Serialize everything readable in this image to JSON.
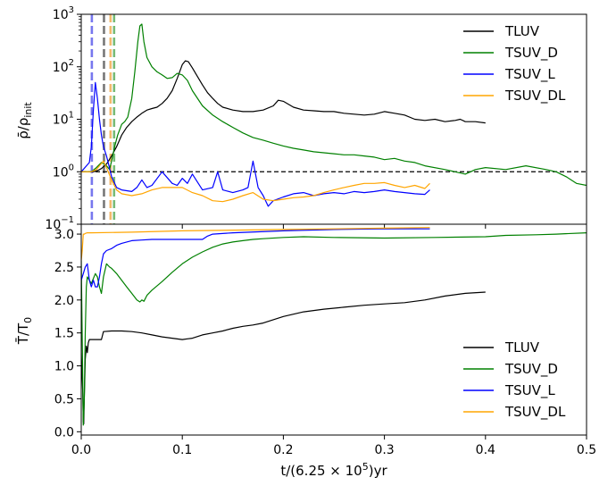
{
  "chart_data": [
    {
      "type": "line",
      "panel": "top",
      "yscale": "log",
      "ylabel": "ρ̄/ρ_init",
      "ylabel_main": "ρ̄/ρ",
      "ylabel_sub": "init",
      "xlim": [
        0,
        0.5
      ],
      "ylim": [
        0.1,
        1000
      ],
      "yticks": [
        {
          "value": 0.1,
          "mant": "10",
          "exp": "−1"
        },
        {
          "value": 1,
          "mant": "10",
          "exp": "0"
        },
        {
          "value": 10,
          "mant": "10",
          "exp": "1"
        },
        {
          "value": 100,
          "mant": "10",
          "exp": "2"
        },
        {
          "value": 1000,
          "mant": "10",
          "exp": "3"
        }
      ],
      "reference_line": {
        "y": 1,
        "style": "dashed",
        "color": "#000000"
      },
      "vertical_markers": [
        {
          "x": 0.0105,
          "color": "#7777ee"
        },
        {
          "x": 0.0225,
          "color": "#777777"
        },
        {
          "x": 0.029,
          "color": "#f3b86b"
        },
        {
          "x": 0.0325,
          "color": "#77bb77"
        }
      ],
      "legend": {
        "position": "upper-right"
      },
      "series": [
        {
          "name": "TLUV",
          "color": "#000000",
          "x": [
            0,
            0.012,
            0.016,
            0.02,
            0.025,
            0.03,
            0.035,
            0.04,
            0.045,
            0.05,
            0.055,
            0.06,
            0.065,
            0.07,
            0.075,
            0.08,
            0.085,
            0.09,
            0.095,
            0.1,
            0.103,
            0.106,
            0.11,
            0.115,
            0.12,
            0.125,
            0.13,
            0.135,
            0.14,
            0.15,
            0.16,
            0.17,
            0.18,
            0.19,
            0.195,
            0.2,
            0.21,
            0.22,
            0.23,
            0.24,
            0.25,
            0.26,
            0.27,
            0.28,
            0.29,
            0.3,
            0.31,
            0.32,
            0.33,
            0.34,
            0.35,
            0.36,
            0.37,
            0.375,
            0.38,
            0.39,
            0.4
          ],
          "y": [
            1,
            1,
            1.05,
            1.15,
            1.4,
            2,
            3,
            5,
            7,
            9,
            11,
            13,
            15,
            16,
            17,
            20,
            25,
            35,
            60,
            110,
            130,
            125,
            95,
            65,
            45,
            32,
            25,
            20,
            17,
            15,
            14,
            14,
            15,
            18,
            23,
            22,
            17,
            15,
            14.5,
            14,
            14,
            13,
            12.5,
            12,
            12.5,
            14,
            13,
            12,
            10,
            9.5,
            10,
            9,
            9.5,
            10,
            9,
            9,
            8.5
          ]
        },
        {
          "name": "TSUV_D",
          "color": "#008000",
          "x": [
            0,
            0.01,
            0.015,
            0.02,
            0.025,
            0.028,
            0.03,
            0.033,
            0.036,
            0.04,
            0.043,
            0.046,
            0.05,
            0.053,
            0.056,
            0.058,
            0.06,
            0.062,
            0.065,
            0.07,
            0.075,
            0.08,
            0.085,
            0.09,
            0.095,
            0.1,
            0.105,
            0.11,
            0.12,
            0.13,
            0.14,
            0.15,
            0.16,
            0.17,
            0.18,
            0.19,
            0.2,
            0.21,
            0.22,
            0.23,
            0.24,
            0.25,
            0.26,
            0.27,
            0.28,
            0.29,
            0.3,
            0.31,
            0.32,
            0.33,
            0.34,
            0.36,
            0.38,
            0.39,
            0.4,
            0.42,
            0.44,
            0.46,
            0.47,
            0.48,
            0.49,
            0.5
          ],
          "y": [
            1,
            1,
            1.2,
            1.5,
            1.3,
            1.1,
            1.6,
            3,
            5,
            8,
            9,
            11,
            25,
            80,
            300,
            600,
            650,
            300,
            150,
            100,
            80,
            70,
            60,
            62,
            75,
            70,
            55,
            35,
            18,
            12,
            9,
            7,
            5.5,
            4.5,
            4,
            3.5,
            3.1,
            2.8,
            2.6,
            2.4,
            2.3,
            2.2,
            2.1,
            2.1,
            2,
            1.9,
            1.7,
            1.8,
            1.6,
            1.5,
            1.3,
            1.1,
            0.9,
            1.1,
            1.2,
            1.1,
            1.3,
            1.1,
            1,
            0.8,
            0.6,
            0.55
          ]
        },
        {
          "name": "TSUV_L",
          "color": "#0000ff",
          "x": [
            0,
            0.008,
            0.01,
            0.012,
            0.014,
            0.016,
            0.018,
            0.02,
            0.022,
            0.025,
            0.027,
            0.03,
            0.035,
            0.04,
            0.05,
            0.055,
            0.06,
            0.065,
            0.07,
            0.08,
            0.09,
            0.095,
            0.1,
            0.105,
            0.11,
            0.12,
            0.13,
            0.135,
            0.14,
            0.15,
            0.16,
            0.165,
            0.17,
            0.175,
            0.18,
            0.185,
            0.19,
            0.2,
            0.21,
            0.22,
            0.23,
            0.24,
            0.25,
            0.26,
            0.27,
            0.28,
            0.29,
            0.3,
            0.31,
            0.32,
            0.33,
            0.34,
            0.345
          ],
          "y": [
            1,
            1.5,
            3,
            15,
            50,
            25,
            10,
            5,
            3,
            2,
            1.4,
            0.8,
            0.5,
            0.45,
            0.42,
            0.5,
            0.7,
            0.5,
            0.55,
            1,
            0.6,
            0.55,
            0.75,
            0.6,
            0.9,
            0.45,
            0.5,
            1,
            0.45,
            0.4,
            0.45,
            0.5,
            1.6,
            0.5,
            0.35,
            0.22,
            0.28,
            0.33,
            0.38,
            0.4,
            0.35,
            0.38,
            0.4,
            0.38,
            0.42,
            0.4,
            0.42,
            0.45,
            0.42,
            0.4,
            0.38,
            0.37,
            0.45
          ]
        },
        {
          "name": "TSUV_DL",
          "color": "#ffa500",
          "x": [
            0,
            0.01,
            0.015,
            0.018,
            0.022,
            0.025,
            0.03,
            0.035,
            0.04,
            0.05,
            0.06,
            0.07,
            0.08,
            0.09,
            0.1,
            0.11,
            0.12,
            0.13,
            0.14,
            0.15,
            0.16,
            0.17,
            0.18,
            0.19,
            0.2,
            0.21,
            0.22,
            0.23,
            0.24,
            0.25,
            0.26,
            0.27,
            0.28,
            0.29,
            0.3,
            0.31,
            0.32,
            0.33,
            0.34,
            0.345
          ],
          "y": [
            1,
            1,
            1.1,
            1.3,
            1.6,
            1.2,
            0.7,
            0.45,
            0.38,
            0.35,
            0.38,
            0.45,
            0.5,
            0.5,
            0.5,
            0.4,
            0.35,
            0.28,
            0.27,
            0.3,
            0.35,
            0.4,
            0.3,
            0.28,
            0.3,
            0.32,
            0.33,
            0.35,
            0.4,
            0.45,
            0.5,
            0.55,
            0.6,
            0.6,
            0.62,
            0.55,
            0.5,
            0.55,
            0.48,
            0.6
          ]
        }
      ]
    },
    {
      "type": "line",
      "panel": "bottom",
      "yscale": "linear",
      "ylabel": "T̄/T_0",
      "ylabel_main": "T̄/T",
      "ylabel_sub": "0",
      "xlabel": "t/(6.25 × 10⁵)yr",
      "xlabel_main": "t/(6.25 × 10",
      "xlabel_sup": "5",
      "xlabel_tail": ")yr",
      "xlim": [
        0,
        0.5
      ],
      "ylim": [
        -0.05,
        3.15
      ],
      "xticks": [
        "0.0",
        "0.1",
        "0.2",
        "0.3",
        "0.4",
        "0.5"
      ],
      "xtick_values": [
        0,
        0.1,
        0.2,
        0.3,
        0.4,
        0.5
      ],
      "yticks": [
        "0.0",
        "0.5",
        "1.0",
        "1.5",
        "2.0",
        "2.5",
        "3.0"
      ],
      "ytick_values": [
        0,
        0.5,
        1,
        1.5,
        2,
        2.5,
        3
      ],
      "legend": {
        "position": "lower-right"
      },
      "series": [
        {
          "name": "TLUV",
          "color": "#000000",
          "x": [
            0,
            0.0015,
            0.002,
            0.0025,
            0.003,
            0.004,
            0.005,
            0.006,
            0.007,
            0.008,
            0.01,
            0.015,
            0.02,
            0.022,
            0.03,
            0.04,
            0.05,
            0.06,
            0.07,
            0.08,
            0.09,
            0.1,
            0.105,
            0.11,
            0.12,
            0.13,
            0.14,
            0.15,
            0.16,
            0.17,
            0.18,
            0.19,
            0.2,
            0.22,
            0.24,
            0.26,
            0.28,
            0.3,
            0.32,
            0.34,
            0.36,
            0.38,
            0.4
          ],
          "y": [
            1.2,
            0.6,
            0.15,
            0.12,
            0.5,
            1.1,
            1.3,
            1.2,
            1.35,
            1.4,
            1.4,
            1.4,
            1.4,
            1.52,
            1.53,
            1.53,
            1.52,
            1.5,
            1.47,
            1.44,
            1.42,
            1.4,
            1.41,
            1.42,
            1.47,
            1.5,
            1.53,
            1.57,
            1.6,
            1.62,
            1.65,
            1.7,
            1.75,
            1.82,
            1.86,
            1.89,
            1.92,
            1.94,
            1.96,
            2.0,
            2.06,
            2.1,
            2.12
          ]
        },
        {
          "name": "TSUV_D",
          "color": "#008000",
          "x": [
            0,
            0.002,
            0.003,
            0.004,
            0.005,
            0.006,
            0.008,
            0.01,
            0.014,
            0.016,
            0.018,
            0.02,
            0.022,
            0.025,
            0.028,
            0.03,
            0.035,
            0.04,
            0.045,
            0.05,
            0.055,
            0.058,
            0.06,
            0.062,
            0.065,
            0.07,
            0.08,
            0.09,
            0.1,
            0.11,
            0.12,
            0.13,
            0.14,
            0.15,
            0.16,
            0.17,
            0.18,
            0.2,
            0.22,
            0.25,
            0.3,
            0.35,
            0.4,
            0.42,
            0.45,
            0.47,
            0.5
          ],
          "y": [
            2.6,
            0.1,
            0.5,
            1.5,
            2.2,
            2.35,
            2.3,
            2.25,
            2.4,
            2.35,
            2.2,
            2.1,
            2.35,
            2.55,
            2.5,
            2.48,
            2.4,
            2.3,
            2.2,
            2.1,
            2.0,
            1.97,
            2.0,
            1.98,
            2.07,
            2.15,
            2.28,
            2.42,
            2.55,
            2.65,
            2.73,
            2.8,
            2.85,
            2.88,
            2.9,
            2.92,
            2.93,
            2.95,
            2.96,
            2.95,
            2.94,
            2.95,
            2.96,
            2.98,
            2.99,
            3.0,
            3.02
          ]
        },
        {
          "name": "TSUV_L",
          "color": "#0000ff",
          "x": [
            0,
            0.002,
            0.004,
            0.006,
            0.008,
            0.01,
            0.012,
            0.014,
            0.016,
            0.018,
            0.02,
            0.022,
            0.025,
            0.03,
            0.035,
            0.04,
            0.045,
            0.05,
            0.06,
            0.07,
            0.08,
            0.09,
            0.1,
            0.11,
            0.12,
            0.125,
            0.13,
            0.15,
            0.2,
            0.25,
            0.3,
            0.345
          ],
          "y": [
            2.3,
            2.4,
            2.5,
            2.55,
            2.3,
            2.2,
            2.3,
            2.2,
            2.2,
            2.35,
            2.55,
            2.7,
            2.75,
            2.78,
            2.83,
            2.86,
            2.88,
            2.9,
            2.91,
            2.92,
            2.92,
            2.92,
            2.92,
            2.92,
            2.92,
            2.97,
            3.0,
            3.02,
            3.05,
            3.07,
            3.08,
            3.08
          ]
        },
        {
          "name": "TSUV_DL",
          "color": "#ffa500",
          "x": [
            0,
            0.001,
            0.002,
            0.003,
            0.004,
            0.006,
            0.01,
            0.05,
            0.1,
            0.2,
            0.3,
            0.345
          ],
          "y": [
            2.6,
            2.75,
            3.0,
            3.0,
            3.01,
            3.02,
            3.02,
            3.03,
            3.05,
            3.07,
            3.09,
            3.1
          ]
        }
      ]
    }
  ]
}
